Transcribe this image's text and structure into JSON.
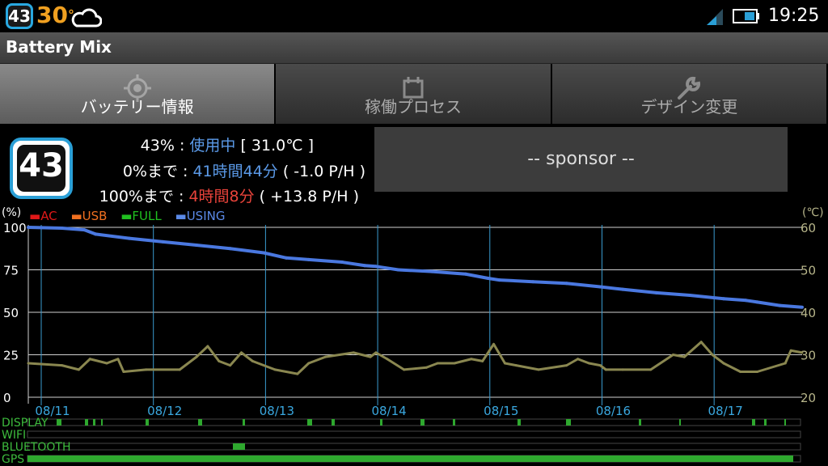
{
  "statusbar": {
    "battery_badge": "43",
    "temperature": "30",
    "temperature_unit": "°",
    "time": "19:25"
  },
  "app": {
    "title": "Battery Mix"
  },
  "tabs": [
    {
      "label": "バッテリー情報",
      "icon": "target-icon",
      "active": true
    },
    {
      "label": "稼働プロセス",
      "icon": "calendar-icon",
      "active": false
    },
    {
      "label": "デザイン変更",
      "icon": "wrench-icon",
      "active": false
    }
  ],
  "info": {
    "badge": "43",
    "line1": {
      "prefix": "43% : ",
      "status": "使用中",
      "suffix": " [ 31.0℃ ]"
    },
    "line2": {
      "prefix": "0%まで : ",
      "time": "41時間44分",
      "suffix": " ( -1.0 P/H )"
    },
    "line3": {
      "prefix": "100%まで : ",
      "time": "4時間8分",
      "suffix": " ( +13.8 P/H )"
    }
  },
  "sponsor": {
    "label": "-- sponsor --"
  },
  "colors": {
    "ac": "#e01818",
    "usb": "#f07020",
    "full": "#20c020",
    "using": "#4a78e0",
    "temp": "#8a8750",
    "grid_v": "#3a9bd0",
    "activity": "#2ea82e"
  },
  "chart_data": {
    "type": "line",
    "legend": [
      {
        "name": "AC",
        "color": "#e01818"
      },
      {
        "name": "USB",
        "color": "#f07020"
      },
      {
        "name": "FULL",
        "color": "#20c020"
      },
      {
        "name": "USING",
        "color": "#4a78e0"
      }
    ],
    "left_unit": "(%)",
    "right_unit": "(℃)",
    "left_ticks": [
      100,
      75,
      50,
      25,
      0
    ],
    "right_ticks": [
      60,
      50,
      40,
      30,
      20
    ],
    "ylim": [
      0,
      100
    ],
    "y2lim": [
      20,
      60
    ],
    "xlim_days": [
      0,
      6.9
    ],
    "x_tick_labels": [
      "08/11",
      "08/12",
      "08/13",
      "08/14",
      "08/15",
      "08/16",
      "08/17"
    ],
    "series": [
      {
        "name": "USING",
        "axis": "left",
        "points": [
          [
            0,
            100
          ],
          [
            0.3,
            99.5
          ],
          [
            0.5,
            98.5
          ],
          [
            0.6,
            96
          ],
          [
            0.9,
            93.5
          ],
          [
            1.2,
            91.5
          ],
          [
            1.5,
            89.5
          ],
          [
            1.8,
            87.5
          ],
          [
            2.1,
            85
          ],
          [
            2.3,
            82
          ],
          [
            2.5,
            81
          ],
          [
            2.8,
            79.5
          ],
          [
            3.0,
            77.5
          ],
          [
            3.1,
            77
          ],
          [
            3.3,
            75
          ],
          [
            3.6,
            74
          ],
          [
            3.9,
            72.5
          ],
          [
            4.1,
            70
          ],
          [
            4.2,
            69
          ],
          [
            4.5,
            68
          ],
          [
            4.8,
            67
          ],
          [
            5.1,
            65
          ],
          [
            5.3,
            63.5
          ],
          [
            5.6,
            61.5
          ],
          [
            5.9,
            60
          ],
          [
            6.2,
            58
          ],
          [
            6.4,
            57
          ],
          [
            6.5,
            56
          ],
          [
            6.7,
            54
          ],
          [
            6.9,
            53
          ]
        ]
      },
      {
        "name": "temperature",
        "axis": "right",
        "points": [
          [
            0,
            28
          ],
          [
            0.3,
            27.5
          ],
          [
            0.45,
            26.5
          ],
          [
            0.55,
            29
          ],
          [
            0.7,
            28
          ],
          [
            0.8,
            29
          ],
          [
            0.85,
            26
          ],
          [
            1.05,
            26.5
          ],
          [
            1.35,
            26.5
          ],
          [
            1.5,
            29.5
          ],
          [
            1.6,
            32
          ],
          [
            1.7,
            28.5
          ],
          [
            1.8,
            27.5
          ],
          [
            1.9,
            30.5
          ],
          [
            2.0,
            28.5
          ],
          [
            2.2,
            26.5
          ],
          [
            2.4,
            25.5
          ],
          [
            2.5,
            28
          ],
          [
            2.65,
            29.5
          ],
          [
            2.9,
            30.5
          ],
          [
            3.05,
            29.5
          ],
          [
            3.1,
            30.5
          ],
          [
            3.2,
            29
          ],
          [
            3.35,
            26.5
          ],
          [
            3.55,
            27
          ],
          [
            3.65,
            28
          ],
          [
            3.8,
            28
          ],
          [
            3.95,
            29
          ],
          [
            4.05,
            28.5
          ],
          [
            4.15,
            32.5
          ],
          [
            4.25,
            28
          ],
          [
            4.35,
            27.5
          ],
          [
            4.55,
            26.5
          ],
          [
            4.8,
            27.5
          ],
          [
            4.9,
            29
          ],
          [
            5.0,
            28
          ],
          [
            5.1,
            27.5
          ],
          [
            5.15,
            26.5
          ],
          [
            5.3,
            26.5
          ],
          [
            5.55,
            26.5
          ],
          [
            5.75,
            30
          ],
          [
            5.85,
            29.5
          ],
          [
            6.0,
            33
          ],
          [
            6.1,
            30
          ],
          [
            6.2,
            28
          ],
          [
            6.35,
            26
          ],
          [
            6.5,
            26
          ],
          [
            6.75,
            28
          ],
          [
            6.8,
            31
          ],
          [
            6.9,
            30.5
          ]
        ]
      }
    ]
  },
  "activity": {
    "labels": [
      "DISPLAY",
      "WIFI",
      "BLUETOOTH",
      "GPS"
    ]
  }
}
